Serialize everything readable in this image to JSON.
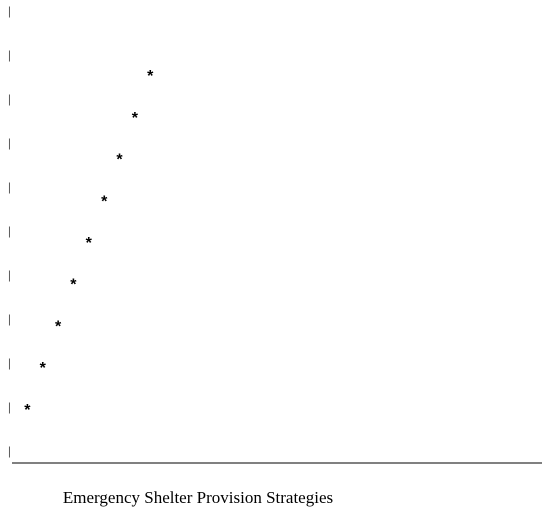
{
  "chart_data": {
    "type": "scatter",
    "title": "",
    "xlabel": "Emergency Shelter Provision Strategies",
    "ylabel": "",
    "marker": "*",
    "y_axis_tick_glyph": "|",
    "x": [
      1,
      2,
      3,
      4,
      5,
      6,
      7,
      8,
      9
    ],
    "y": [
      1,
      2,
      3,
      4,
      5,
      6,
      7,
      8,
      9
    ],
    "xlim": [
      0,
      34.5
    ],
    "ylim": [
      -0.25,
      10.25
    ],
    "grid": false,
    "legend": "none",
    "colors": {
      "marker": "#000000",
      "axis": "#000000",
      "text": "#000000"
    }
  }
}
